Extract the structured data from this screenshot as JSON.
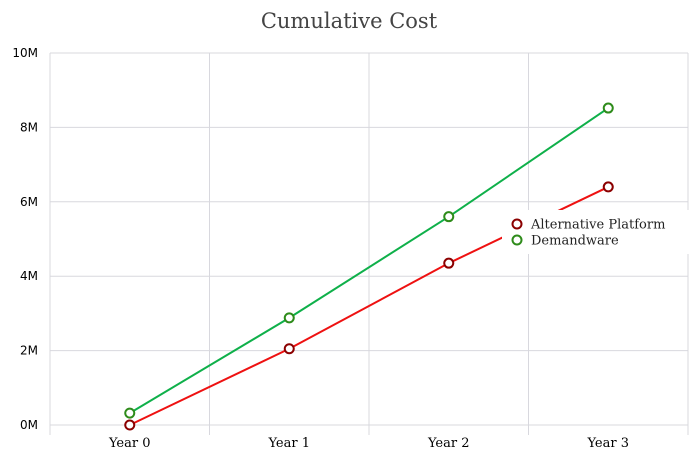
{
  "chart_data": {
    "type": "line",
    "title": "Cumulative Cost",
    "categories": [
      "Year 0",
      "Year 1",
      "Year 2",
      "Year 3"
    ],
    "ylim": [
      0,
      10
    ],
    "yticks": [
      0,
      2,
      4,
      6,
      8,
      10
    ],
    "ytick_labels": [
      "0M",
      "2M",
      "4M",
      "6M",
      "8M",
      "10M"
    ],
    "grid": true,
    "legend_position": "right",
    "series": [
      {
        "name": "Alternative Platform",
        "values": [
          0.0,
          2.05,
          4.35,
          6.4
        ],
        "line_color": "#ee1111",
        "marker_color": "#8b0000"
      },
      {
        "name": "Demandware",
        "values": [
          0.32,
          2.88,
          5.6,
          8.52
        ],
        "line_color": "#0fb04a",
        "marker_color": "#2e8b1a"
      }
    ]
  }
}
